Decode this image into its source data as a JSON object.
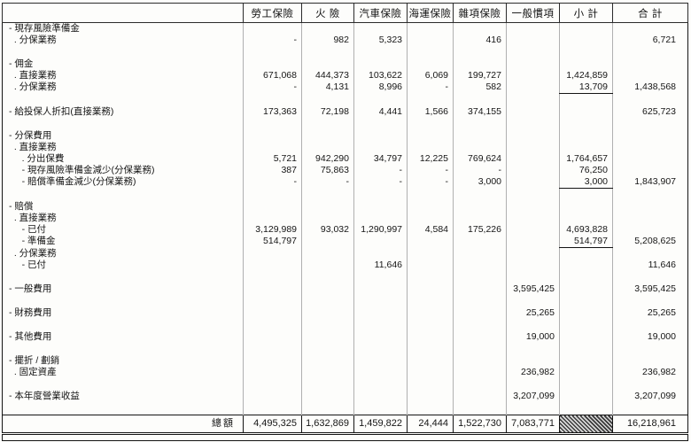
{
  "colors": {
    "ink": "#141414",
    "paper": "#fdfdfb",
    "hatch_dark": "#3a3a3a"
  },
  "table": {
    "columns": [
      "勞工保險",
      "火 險",
      "汽車保險",
      "海運保險",
      "雜項保險",
      "一般慣項",
      "小 計",
      "合 計"
    ],
    "rows": [
      {
        "label": "- 現存風險準備金",
        "values": [
          "",
          "",
          "",
          "",
          "",
          "",
          "",
          ""
        ]
      },
      {
        "label": "  . 分保業務",
        "values": [
          "-",
          "982",
          "5,323",
          "",
          "416",
          "",
          "",
          "6,721"
        ]
      },
      {
        "spacer": true
      },
      {
        "label": "- 佣金",
        "values": [
          "",
          "",
          "",
          "",
          "",
          "",
          "",
          ""
        ]
      },
      {
        "label": "  . 直接業務",
        "values": [
          "671,068",
          "444,373",
          "103,622",
          "6,069",
          "199,727",
          "",
          "1,424,859",
          ""
        ]
      },
      {
        "label": "  . 分保業務",
        "values": [
          "-",
          "4,131",
          "8,996",
          "-",
          "582",
          "",
          "13,709",
          "1,438,568"
        ],
        "subtotal_rule": true
      },
      {
        "spacer": true
      },
      {
        "label": "- 給投保人折扣(直接業務)",
        "values": [
          "173,363",
          "72,198",
          "4,441",
          "1,566",
          "374,155",
          "",
          "",
          "625,723"
        ]
      },
      {
        "spacer": true
      },
      {
        "label": "- 分保費用",
        "values": [
          "",
          "",
          "",
          "",
          "",
          "",
          "",
          ""
        ]
      },
      {
        "label": "  . 直接業務",
        "values": [
          "",
          "",
          "",
          "",
          "",
          "",
          "",
          ""
        ]
      },
      {
        "label": "     . 分出保費",
        "values": [
          "5,721",
          "942,290",
          "34,797",
          "12,225",
          "769,624",
          "",
          "1,764,657",
          ""
        ]
      },
      {
        "label": "     - 現存風險準備金減少(分保業務)",
        "values": [
          "387",
          "75,863",
          "-",
          "-",
          "-",
          "",
          "76,250",
          ""
        ]
      },
      {
        "label": "     - 賠償準備金減少(分保業務)",
        "values": [
          "-",
          "-",
          "-",
          "-",
          "3,000",
          "",
          "3,000",
          "1,843,907"
        ],
        "subtotal_rule": true
      },
      {
        "spacer": true
      },
      {
        "label": "- 賠償",
        "values": [
          "",
          "",
          "",
          "",
          "",
          "",
          "",
          ""
        ]
      },
      {
        "label": "  . 直接業務",
        "values": [
          "",
          "",
          "",
          "",
          "",
          "",
          "",
          ""
        ]
      },
      {
        "label": "     - 已付",
        "values": [
          "3,129,989",
          "93,032",
          "1,290,997",
          "4,584",
          "175,226",
          "",
          "4,693,828",
          ""
        ]
      },
      {
        "label": "     - 準備金",
        "values": [
          "514,797",
          "",
          "",
          "",
          "",
          "",
          "514,797",
          "5,208,625"
        ],
        "subtotal_rule": true
      },
      {
        "label": "  . 分保業務",
        "values": [
          "",
          "",
          "",
          "",
          "",
          "",
          "",
          ""
        ]
      },
      {
        "label": "     - 已付",
        "values": [
          "",
          "",
          "11,646",
          "",
          "",
          "",
          "",
          "11,646"
        ]
      },
      {
        "spacer": true
      },
      {
        "label": "- 一般費用",
        "values": [
          "",
          "",
          "",
          "",
          "",
          "3,595,425",
          "",
          "3,595,425"
        ]
      },
      {
        "spacer": true
      },
      {
        "label": "- 財務費用",
        "values": [
          "",
          "",
          "",
          "",
          "",
          "25,265",
          "",
          "25,265"
        ]
      },
      {
        "spacer": true
      },
      {
        "label": "- 其他費用",
        "values": [
          "",
          "",
          "",
          "",
          "",
          "19,000",
          "",
          "19,000"
        ]
      },
      {
        "spacer": true
      },
      {
        "label": "- 擺折 / 劃銷",
        "values": [
          "",
          "",
          "",
          "",
          "",
          "",
          "",
          ""
        ]
      },
      {
        "label": "  . 固定資產",
        "values": [
          "",
          "",
          "",
          "",
          "",
          "236,982",
          "",
          "236,982"
        ]
      },
      {
        "spacer": true
      },
      {
        "label": "- 本年度營業收益",
        "values": [
          "",
          "",
          "",
          "",
          "",
          "3,207,099",
          "",
          "3,207,099"
        ]
      },
      {
        "spacer": true
      }
    ],
    "total_row": {
      "label": "總額",
      "values": [
        "4,495,325",
        "1,632,869",
        "1,459,822",
        "24,444",
        "1,522,730",
        "7,083,771",
        "",
        "16,218,961"
      ],
      "hatched_column_index": 6
    }
  }
}
